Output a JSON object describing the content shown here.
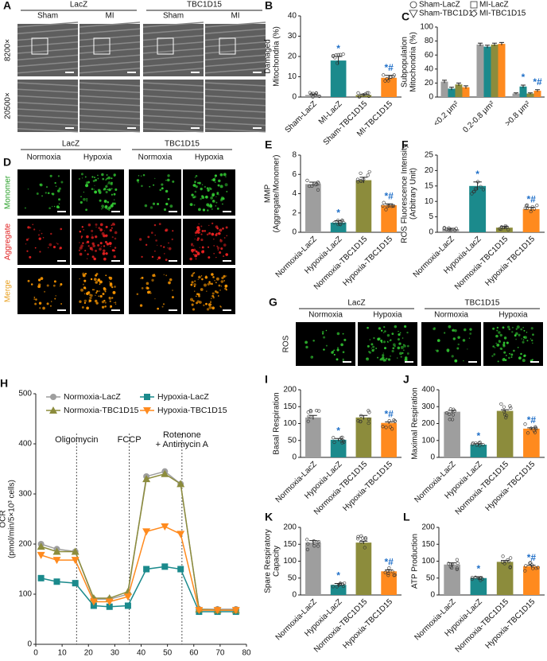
{
  "micrographs": [
    {
      "panel": "A",
      "groups": [
        "LacZ",
        "TBC1D15"
      ],
      "columns": [
        "Sham",
        "MI",
        "Sham",
        "MI"
      ],
      "rows": [
        "8200×",
        "20500×"
      ]
    },
    {
      "panel": "D",
      "groups": [
        "LacZ",
        "TBC1D15"
      ],
      "columns": [
        "Normoxia",
        "Hypoxia",
        "Normoxia",
        "Hypoxia"
      ],
      "rows": [
        "Monomer",
        "Aggregate",
        "Merge"
      ]
    },
    {
      "panel": "G",
      "groups": [
        "LacZ",
        "TBC1D15"
      ],
      "columns": [
        "Normoxia",
        "Hypoxia",
        "Normoxia",
        "Hypoxia"
      ],
      "rows": [
        "ROS"
      ]
    }
  ],
  "chart_data": [
    {
      "panel": "B",
      "type": "bar",
      "ylabel": [
        "Damaged",
        "Mitochondria (%)"
      ],
      "categories": [
        "Sham-LacZ",
        "MI-LacZ",
        "Sham-TBC1D15",
        "MI-TBC1D15"
      ],
      "values": [
        1,
        18,
        1,
        9.5
      ],
      "errors": [
        0.4,
        2,
        0.4,
        1.2
      ],
      "annotations": [
        null,
        "*",
        null,
        "*#"
      ],
      "annotation_color": "#1f6fc8",
      "colors": [
        "#9e9e9e",
        "#1b8a8c",
        "#8c8c3c",
        "#ff8a1e"
      ],
      "ylim": [
        0,
        40
      ],
      "yticks": [
        0,
        10,
        20,
        30,
        40
      ]
    },
    {
      "panel": "C",
      "type": "grouped-bar",
      "ylabel": [
        "Subpopulation",
        "Mitochondria (%)"
      ],
      "categories": [
        "<0.2 μm²",
        "0.2-0.8 μm²",
        ">0.8 μm²"
      ],
      "annotation_color": "#1f6fc8",
      "series": [
        {
          "name": "Sham-LacZ",
          "color": "#9e9e9e",
          "marker": "circle",
          "values": [
            22,
            75,
            5
          ],
          "errors": [
            2,
            2,
            1
          ],
          "annotations": [
            null,
            null,
            null
          ]
        },
        {
          "name": "MI-LacZ",
          "color": "#1b8a8c",
          "marker": "square",
          "values": [
            12,
            72,
            15
          ],
          "errors": [
            2,
            2,
            2
          ],
          "annotations": [
            null,
            null,
            "*"
          ]
        },
        {
          "name": "Sham-TBC1D15",
          "color": "#8c8c3c",
          "marker": "tri-down",
          "values": [
            18,
            75,
            5
          ],
          "errors": [
            2,
            2,
            1
          ],
          "annotations": [
            null,
            null,
            null
          ]
        },
        {
          "name": "MI-TBC1D15",
          "color": "#ff8a1e",
          "marker": "diamond",
          "values": [
            14,
            76,
            9
          ],
          "errors": [
            2,
            2,
            1.5
          ],
          "annotations": [
            null,
            null,
            "*#"
          ]
        }
      ],
      "ylim": [
        0,
        100
      ],
      "yticks": [
        0,
        20,
        40,
        60,
        80,
        100
      ]
    },
    {
      "panel": "E",
      "type": "bar",
      "ylabel": [
        "MMP",
        "(Aggregate/Monomer)"
      ],
      "categories": [
        "Normoxia-LacZ",
        "Hypoxia-LacZ",
        "Normoxia-TBC1D15",
        "Hypoxia-TBC1D15"
      ],
      "values": [
        5,
        1,
        5.4,
        2.8
      ],
      "errors": [
        0.2,
        0.2,
        0.3,
        0.15
      ],
      "annotations": [
        null,
        "*",
        null,
        "*#"
      ],
      "annotation_color": "#1f6fc8",
      "colors": [
        "#9e9e9e",
        "#1b8a8c",
        "#8c8c3c",
        "#ff8a1e"
      ],
      "ylim": [
        0,
        8
      ],
      "yticks": [
        0,
        2,
        4,
        6,
        8
      ]
    },
    {
      "panel": "F",
      "type": "bar",
      "ylabel": [
        "ROS Fluorescence Intensity",
        "(Arbitrary Unit)"
      ],
      "categories": [
        "Normoxia-LacZ",
        "Hypoxia-LacZ",
        "Normoxia-TBC1D15",
        "Hypoxia-TBC1D15"
      ],
      "values": [
        1,
        15,
        1.5,
        7.5
      ],
      "errors": [
        0.3,
        1.3,
        0.4,
        0.6
      ],
      "annotations": [
        null,
        "*",
        null,
        "*#"
      ],
      "annotation_color": "#1f6fc8",
      "colors": [
        "#9e9e9e",
        "#1b8a8c",
        "#8c8c3c",
        "#ff8a1e"
      ],
      "ylim": [
        0,
        25
      ],
      "yticks": [
        0,
        5,
        10,
        15,
        20,
        25
      ]
    },
    {
      "panel": "H",
      "type": "line",
      "ylabel": [
        "OCR",
        "(pmol/min/5×10³ cells)"
      ],
      "x": [
        2,
        8,
        15,
        22,
        28,
        35,
        42,
        49,
        55,
        62,
        69,
        76
      ],
      "series": [
        {
          "name": "Normoxia-LacZ",
          "color": "#9e9e9e",
          "marker": "circle",
          "values": [
            200,
            190,
            185,
            90,
            90,
            100,
            335,
            345,
            320,
            70,
            70,
            70
          ]
        },
        {
          "name": "Hypoxia-LacZ",
          "color": "#1b8a8c",
          "marker": "square",
          "values": [
            132,
            125,
            122,
            77,
            75,
            77,
            150,
            155,
            150,
            65,
            65,
            65
          ]
        },
        {
          "name": "Normoxia-TBC1D15",
          "color": "#8c8c3c",
          "marker": "triangle",
          "values": [
            195,
            185,
            185,
            92,
            92,
            105,
            330,
            340,
            320,
            70,
            68,
            68
          ]
        },
        {
          "name": "Hypoxia-TBC1D15",
          "color": "#ff8a1e",
          "marker": "tri-down",
          "values": [
            178,
            168,
            168,
            85,
            85,
            95,
            225,
            235,
            220,
            68,
            68,
            68
          ]
        }
      ],
      "injections": [
        {
          "label": [
            "Oligomycin"
          ],
          "x": 15.5
        },
        {
          "label": [
            "FCCP"
          ],
          "x": 35.5
        },
        {
          "label": [
            "Rotenone",
            "+ Antimycin A"
          ],
          "x": 55.5
        }
      ],
      "xlim": [
        0,
        80
      ],
      "xticks": [
        0,
        10,
        20,
        30,
        40,
        50,
        60,
        70,
        80
      ],
      "ylim": [
        0,
        500
      ],
      "yticks": [
        0,
        100,
        200,
        300,
        400,
        500
      ]
    },
    {
      "panel": "I",
      "type": "bar",
      "ylabel": [
        "Basal Respiration"
      ],
      "categories": [
        "Normoxia-LacZ",
        "Hypoxia-LacZ",
        "Normoxia-TBC1D15",
        "Hypoxia-TBC1D15"
      ],
      "values": [
        118,
        52,
        118,
        102
      ],
      "errors": [
        6,
        4,
        6,
        3
      ],
      "annotations": [
        null,
        "*",
        null,
        "*#"
      ],
      "annotation_color": "#1f6fc8",
      "colors": [
        "#9e9e9e",
        "#1b8a8c",
        "#8c8c3c",
        "#ff8a1e"
      ],
      "ylim": [
        0,
        200
      ],
      "yticks": [
        0,
        50,
        100,
        150,
        200
      ]
    },
    {
      "panel": "J",
      "type": "bar",
      "ylabel": [
        "Maximal Respiration"
      ],
      "categories": [
        "Normoxia-LacZ",
        "Hypoxia-LacZ",
        "Normoxia-TBC1D15",
        "Hypoxia-TBC1D15"
      ],
      "values": [
        270,
        75,
        275,
        170
      ],
      "errors": [
        8,
        6,
        7,
        5
      ],
      "annotations": [
        null,
        "*",
        null,
        "*#"
      ],
      "annotation_color": "#1f6fc8",
      "colors": [
        "#9e9e9e",
        "#1b8a8c",
        "#8c8c3c",
        "#ff8a1e"
      ],
      "ylim": [
        0,
        400
      ],
      "yticks": [
        0,
        100,
        200,
        300,
        400
      ]
    },
    {
      "panel": "K",
      "type": "bar",
      "ylabel": [
        "Spare Respiratory",
        "Capacity"
      ],
      "categories": [
        "Normoxia-LacZ",
        "Hypoxia-LacZ",
        "Normoxia-TBC1D15",
        "Hypoxia-TBC1D15"
      ],
      "values": [
        155,
        30,
        155,
        70
      ],
      "errors": [
        6,
        4,
        4,
        4
      ],
      "annotations": [
        null,
        "*",
        null,
        "*#"
      ],
      "annotation_color": "#1f6fc8",
      "colors": [
        "#9e9e9e",
        "#1b8a8c",
        "#8c8c3c",
        "#ff8a1e"
      ],
      "ylim": [
        0,
        200
      ],
      "yticks": [
        0,
        50,
        100,
        150,
        200
      ]
    },
    {
      "panel": "L",
      "type": "bar",
      "ylabel": [
        "ATP Production"
      ],
      "categories": [
        "Normoxia-LacZ",
        "Hypoxia-LacZ",
        "Normoxia-TBC1D15",
        "Hypoxia-TBC1D15"
      ],
      "values": [
        90,
        50,
        98,
        85
      ],
      "errors": [
        5,
        4,
        4,
        3
      ],
      "annotations": [
        null,
        "*",
        null,
        "*#"
      ],
      "annotation_color": "#1f6fc8",
      "colors": [
        "#9e9e9e",
        "#1b8a8c",
        "#8c8c3c",
        "#ff8a1e"
      ],
      "ylim": [
        0,
        200
      ],
      "yticks": [
        0,
        50,
        100,
        150,
        200
      ]
    }
  ]
}
